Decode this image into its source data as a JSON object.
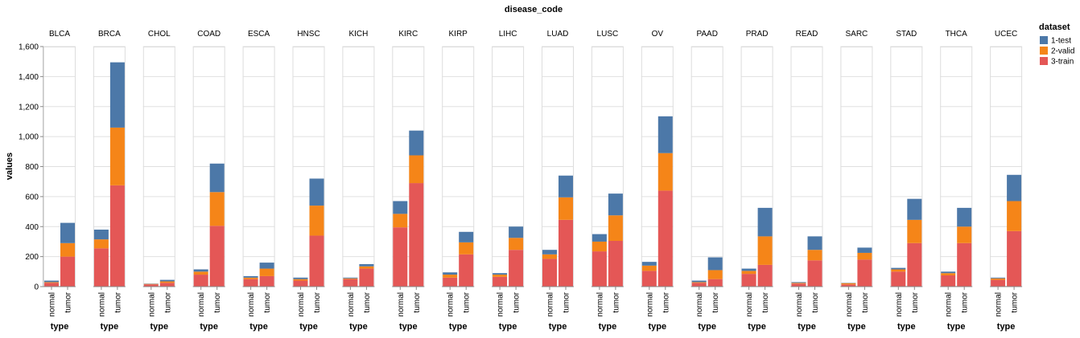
{
  "chart_data": {
    "type": "bar",
    "stacked": true,
    "facet_title": "disease_code",
    "xlabel": "type",
    "ylabel": "values",
    "ylim": [
      0,
      1600
    ],
    "yticks": [
      "0",
      "200",
      "400",
      "600",
      "800",
      "1,000",
      "1,200",
      "1,400",
      "1,600"
    ],
    "ytick_values": [
      0,
      200,
      400,
      600,
      800,
      1000,
      1200,
      1400,
      1600
    ],
    "categories": [
      "normal",
      "tumor"
    ],
    "legend": {
      "title": "dataset",
      "placement": "top-right",
      "entries": [
        {
          "name": "1-test",
          "color": "#4c78a8"
        },
        {
          "name": "2-valid",
          "color": "#f58518"
        },
        {
          "name": "3-train",
          "color": "#e45756"
        }
      ]
    },
    "stack_order": [
      "3-train",
      "2-valid",
      "1-test"
    ],
    "facets": [
      {
        "name": "BLCA",
        "normal": {
          "3-train": 25,
          "2-valid": 5,
          "1-test": 10
        },
        "tumor": {
          "3-train": 200,
          "2-valid": 90,
          "1-test": 135
        }
      },
      {
        "name": "BRCA",
        "normal": {
          "3-train": 255,
          "2-valid": 60,
          "1-test": 65
        },
        "tumor": {
          "3-train": 675,
          "2-valid": 385,
          "1-test": 435
        }
      },
      {
        "name": "CHOL",
        "normal": {
          "3-train": 15,
          "2-valid": 3,
          "1-test": 2
        },
        "tumor": {
          "3-train": 25,
          "2-valid": 10,
          "1-test": 10
        }
      },
      {
        "name": "COAD",
        "normal": {
          "3-train": 80,
          "2-valid": 20,
          "1-test": 15
        },
        "tumor": {
          "3-train": 405,
          "2-valid": 225,
          "1-test": 190
        }
      },
      {
        "name": "ESCA",
        "normal": {
          "3-train": 50,
          "2-valid": 10,
          "1-test": 10
        },
        "tumor": {
          "3-train": 70,
          "2-valid": 50,
          "1-test": 40
        }
      },
      {
        "name": "HNSC",
        "normal": {
          "3-train": 40,
          "2-valid": 10,
          "1-test": 10
        },
        "tumor": {
          "3-train": 340,
          "2-valid": 200,
          "1-test": 180
        }
      },
      {
        "name": "KICH",
        "normal": {
          "3-train": 50,
          "2-valid": 5,
          "1-test": 5
        },
        "tumor": {
          "3-train": 120,
          "2-valid": 15,
          "1-test": 15
        }
      },
      {
        "name": "KIRC",
        "normal": {
          "3-train": 395,
          "2-valid": 90,
          "1-test": 85
        },
        "tumor": {
          "3-train": 690,
          "2-valid": 185,
          "1-test": 165
        }
      },
      {
        "name": "KIRP",
        "normal": {
          "3-train": 60,
          "2-valid": 20,
          "1-test": 15
        },
        "tumor": {
          "3-train": 215,
          "2-valid": 80,
          "1-test": 70
        }
      },
      {
        "name": "LIHC",
        "normal": {
          "3-train": 65,
          "2-valid": 15,
          "1-test": 10
        },
        "tumor": {
          "3-train": 245,
          "2-valid": 80,
          "1-test": 75
        }
      },
      {
        "name": "LUAD",
        "normal": {
          "3-train": 185,
          "2-valid": 30,
          "1-test": 30
        },
        "tumor": {
          "3-train": 445,
          "2-valid": 150,
          "1-test": 145
        }
      },
      {
        "name": "LUSC",
        "normal": {
          "3-train": 235,
          "2-valid": 65,
          "1-test": 50
        },
        "tumor": {
          "3-train": 305,
          "2-valid": 170,
          "1-test": 145
        }
      },
      {
        "name": "OV",
        "normal": {
          "3-train": 105,
          "2-valid": 35,
          "1-test": 25
        },
        "tumor": {
          "3-train": 640,
          "2-valid": 250,
          "1-test": 245
        }
      },
      {
        "name": "PAAD",
        "normal": {
          "3-train": 25,
          "2-valid": 5,
          "1-test": 10
        },
        "tumor": {
          "3-train": 50,
          "2-valid": 60,
          "1-test": 85
        }
      },
      {
        "name": "PRAD",
        "normal": {
          "3-train": 85,
          "2-valid": 20,
          "1-test": 15
        },
        "tumor": {
          "3-train": 145,
          "2-valid": 190,
          "1-test": 190
        }
      },
      {
        "name": "READ",
        "normal": {
          "3-train": 20,
          "2-valid": 5,
          "1-test": 5
        },
        "tumor": {
          "3-train": 175,
          "2-valid": 70,
          "1-test": 90
        }
      },
      {
        "name": "SARC",
        "normal": {
          "3-train": 15,
          "2-valid": 8,
          "1-test": 2
        },
        "tumor": {
          "3-train": 180,
          "2-valid": 45,
          "1-test": 35
        }
      },
      {
        "name": "STAD",
        "normal": {
          "3-train": 100,
          "2-valid": 15,
          "1-test": 10
        },
        "tumor": {
          "3-train": 290,
          "2-valid": 155,
          "1-test": 140
        }
      },
      {
        "name": "THCA",
        "normal": {
          "3-train": 75,
          "2-valid": 15,
          "1-test": 10
        },
        "tumor": {
          "3-train": 290,
          "2-valid": 110,
          "1-test": 125
        }
      },
      {
        "name": "UCEC",
        "normal": {
          "3-train": 45,
          "2-valid": 10,
          "1-test": 5
        },
        "tumor": {
          "3-train": 370,
          "2-valid": 200,
          "1-test": 175
        }
      }
    ]
  }
}
